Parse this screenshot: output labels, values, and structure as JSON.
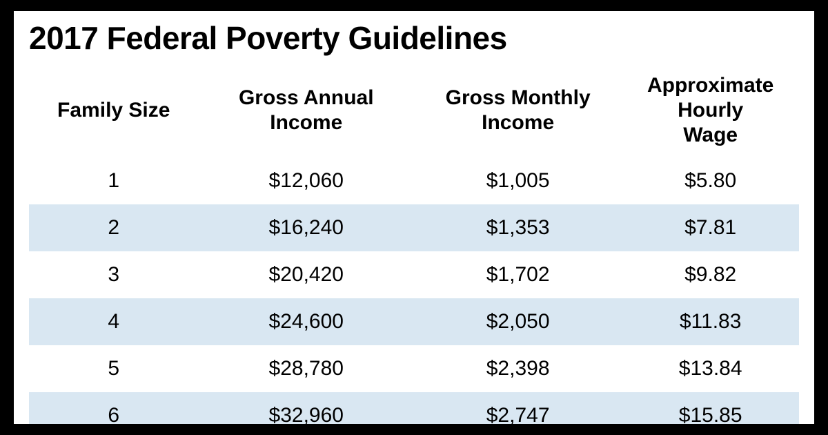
{
  "table": {
    "type": "table",
    "title": "2017 Federal Poverty Guidelines",
    "title_fontsize": 46,
    "header_fontsize": 30,
    "cell_fontsize": 30,
    "background_color": "#ffffff",
    "page_background_color": "#000000",
    "stripe_color": "#d9e7f2",
    "text_color": "#000000",
    "columns": [
      {
        "label": "Family Size",
        "width_pct": 22,
        "align": "center"
      },
      {
        "label": "Gross Annual Income",
        "width_pct": 28,
        "align": "center"
      },
      {
        "label": "Gross Monthly Income",
        "width_pct": 27,
        "align": "center"
      },
      {
        "label": "Approximate Hourly Wage",
        "width_pct": 23,
        "align": "center"
      }
    ],
    "rows": [
      [
        "1",
        "$12,060",
        "$1,005",
        "$5.80"
      ],
      [
        "2",
        "$16,240",
        "$1,353",
        "$7.81"
      ],
      [
        "3",
        "$20,420",
        "$1,702",
        "$9.82"
      ],
      [
        "4",
        "$24,600",
        "$2,050",
        "$11.83"
      ],
      [
        "5",
        "$28,780",
        "$2,398",
        "$13.84"
      ],
      [
        "6",
        "$32,960",
        "$2,747",
        "$15.85"
      ]
    ]
  }
}
